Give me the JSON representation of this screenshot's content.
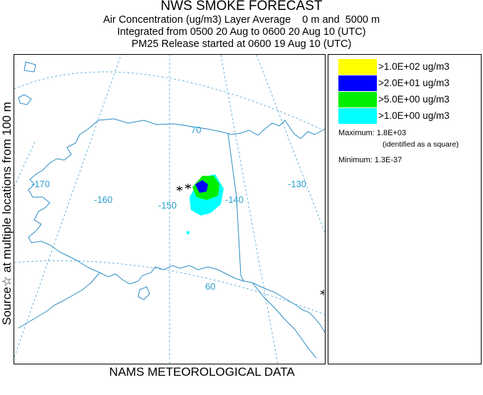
{
  "title": "NWS SMOKE FORECAST",
  "subtitle_lines": [
    "Air Concentration (ug/m3) Layer Average    0 m and  5000 m",
    "Integrated from 0500 20 Aug to 0600 20 Aug 10 (UTC)",
    "PM25 Release started at 0600 19 Aug 10 (UTC)"
  ],
  "side_label": "Source☆ at multiple locations  from   100 m",
  "footer": "NAMS METEOROLOGICAL DATA",
  "map": {
    "longitude_labels": [
      "-170",
      "-160",
      "-150",
      "-140",
      "-130"
    ],
    "latitude_labels": [
      "70",
      "60"
    ],
    "colors": {
      "land_outline": "#2b8cc4",
      "graticule": "#4aa3d6",
      "label": "#2b9fd0"
    }
  },
  "legend": {
    "items": [
      {
        "label": ">1.0E+02 ug/m3",
        "color": "#ffff00"
      },
      {
        "label": ">2.0E+01 ug/m3",
        "color": "#0000ff"
      },
      {
        "label": ">5.0E+00 ug/m3",
        "color": "#00ee00"
      },
      {
        "label": ">1.0E+00 ug/m3",
        "color": "#00ffff"
      }
    ],
    "maximum_label": "Maximum: 1.8E+03",
    "maximum_note": "(identified as a square)",
    "minimum_label": "Minimum: 1.3E-37"
  }
}
